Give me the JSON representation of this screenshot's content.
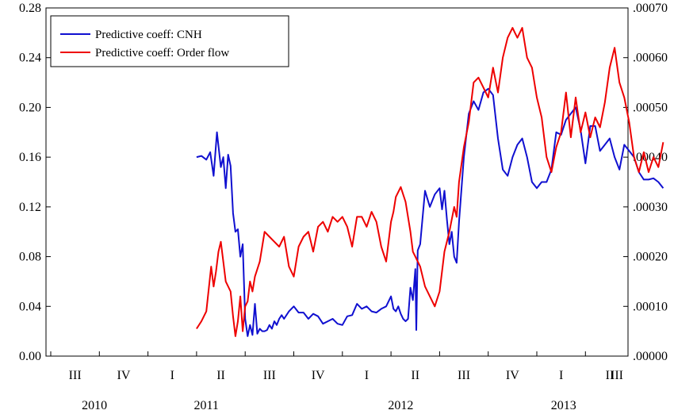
{
  "chart_data": {
    "type": "line",
    "title": "",
    "xlabel": "",
    "ylabel_left": "",
    "ylabel_right": "",
    "x_unit": "quarter index (0 = 2010 Q3)",
    "xlim": [
      0,
      12.7
    ],
    "ylim_left": [
      0.0,
      0.28
    ],
    "ylim_right": [
      0.0,
      0.0007
    ],
    "grid": false,
    "legend_position": "top-left",
    "left_ticks": [
      "0.00",
      "0.04",
      "0.08",
      "0.12",
      "0.16",
      "0.20",
      "0.24",
      "0.28"
    ],
    "right_ticks": [
      ".00000",
      ".00010",
      ".00020",
      ".00030",
      ".00040",
      ".00050",
      ".00060",
      ".00070"
    ],
    "quarter_labels": [
      "III",
      "IV",
      "I",
      "II",
      "III",
      "IV",
      "I",
      "II",
      "III",
      "IV",
      "I",
      "II",
      "III"
    ],
    "year_labels": [
      {
        "label": "2010",
        "x": 0.9
      },
      {
        "label": "2011",
        "x": 3.2
      },
      {
        "label": "2012",
        "x": 7.2
      },
      {
        "label": "2013",
        "x": 10.55
      }
    ],
    "series": [
      {
        "name": "Predictive coeff: CNH",
        "color": "#1010d0",
        "axis": "left",
        "x": [
          3.0,
          3.1,
          3.2,
          3.28,
          3.35,
          3.42,
          3.5,
          3.55,
          3.6,
          3.65,
          3.7,
          3.75,
          3.8,
          3.85,
          3.9,
          3.95,
          4.0,
          4.05,
          4.1,
          4.15,
          4.2,
          4.25,
          4.3,
          4.35,
          4.4,
          4.45,
          4.5,
          4.55,
          4.6,
          4.65,
          4.7,
          4.75,
          4.8,
          4.9,
          5.0,
          5.1,
          5.2,
          5.3,
          5.4,
          5.5,
          5.6,
          5.7,
          5.8,
          5.9,
          6.0,
          6.1,
          6.2,
          6.3,
          6.4,
          6.5,
          6.6,
          6.7,
          6.8,
          6.9,
          7.0,
          7.05,
          7.1,
          7.15,
          7.2,
          7.25,
          7.3,
          7.35,
          7.4,
          7.45,
          7.5,
          7.52,
          7.55,
          7.6,
          7.7,
          7.8,
          7.9,
          8.0,
          8.05,
          8.1,
          8.15,
          8.2,
          8.25,
          8.3,
          8.35,
          8.4,
          8.5,
          8.6,
          8.7,
          8.8,
          8.9,
          9.0,
          9.1,
          9.2,
          9.3,
          9.4,
          9.5,
          9.6,
          9.7,
          9.8,
          9.9,
          10.0,
          10.1,
          10.2,
          10.3,
          10.4,
          10.5,
          10.6,
          10.7,
          10.8,
          10.9,
          11.0,
          11.1,
          11.2,
          11.3,
          11.4,
          11.5,
          11.6,
          11.7,
          11.8,
          11.9,
          12.0,
          12.1,
          12.2,
          12.3,
          12.4,
          12.5,
          12.6
        ],
        "values": [
          0.16,
          0.161,
          0.158,
          0.164,
          0.145,
          0.18,
          0.152,
          0.16,
          0.135,
          0.162,
          0.153,
          0.115,
          0.1,
          0.102,
          0.08,
          0.09,
          0.03,
          0.016,
          0.025,
          0.017,
          0.042,
          0.018,
          0.022,
          0.02,
          0.02,
          0.021,
          0.025,
          0.022,
          0.028,
          0.025,
          0.03,
          0.033,
          0.03,
          0.036,
          0.04,
          0.035,
          0.035,
          0.03,
          0.034,
          0.032,
          0.026,
          0.028,
          0.03,
          0.026,
          0.025,
          0.032,
          0.033,
          0.042,
          0.038,
          0.04,
          0.036,
          0.035,
          0.038,
          0.04,
          0.048,
          0.038,
          0.036,
          0.04,
          0.034,
          0.03,
          0.028,
          0.03,
          0.055,
          0.045,
          0.07,
          0.021,
          0.085,
          0.09,
          0.133,
          0.12,
          0.13,
          0.135,
          0.118,
          0.133,
          0.11,
          0.09,
          0.1,
          0.08,
          0.075,
          0.108,
          0.16,
          0.195,
          0.205,
          0.198,
          0.212,
          0.215,
          0.21,
          0.175,
          0.15,
          0.145,
          0.16,
          0.17,
          0.175,
          0.16,
          0.14,
          0.135,
          0.14,
          0.14,
          0.15,
          0.18,
          0.178,
          0.19,
          0.195,
          0.2,
          0.182,
          0.155,
          0.185,
          0.185,
          0.165,
          0.17,
          0.175,
          0.16,
          0.15,
          0.17,
          0.165,
          0.16,
          0.148,
          0.142,
          0.142,
          0.143,
          0.14,
          0.135
        ]
      },
      {
        "name": "Predictive coeff: Order flow",
        "color": "#ee0000",
        "axis": "right",
        "x": [
          3.0,
          3.1,
          3.2,
          3.3,
          3.35,
          3.4,
          3.45,
          3.5,
          3.55,
          3.6,
          3.7,
          3.75,
          3.8,
          3.85,
          3.9,
          3.95,
          4.0,
          4.05,
          4.1,
          4.15,
          4.2,
          4.3,
          4.4,
          4.5,
          4.6,
          4.7,
          4.8,
          4.9,
          5.0,
          5.1,
          5.2,
          5.3,
          5.35,
          5.4,
          5.5,
          5.6,
          5.7,
          5.8,
          5.9,
          6.0,
          6.1,
          6.2,
          6.3,
          6.4,
          6.5,
          6.6,
          6.7,
          6.8,
          6.9,
          7.0,
          7.05,
          7.1,
          7.2,
          7.3,
          7.4,
          7.45,
          7.5,
          7.6,
          7.7,
          7.8,
          7.9,
          8.0,
          8.1,
          8.2,
          8.3,
          8.35,
          8.4,
          8.5,
          8.6,
          8.7,
          8.8,
          8.9,
          9.0,
          9.1,
          9.2,
          9.3,
          9.4,
          9.5,
          9.55,
          9.6,
          9.7,
          9.8,
          9.9,
          10.0,
          10.1,
          10.2,
          10.3,
          10.4,
          10.5,
          10.6,
          10.7,
          10.8,
          10.9,
          11.0,
          11.1,
          11.2,
          11.3,
          11.4,
          11.5,
          11.6,
          11.7,
          11.8,
          11.9,
          12.0,
          12.1,
          12.2,
          12.3,
          12.4,
          12.5,
          12.6
        ],
        "values": [
          5.5e-05,
          7e-05,
          9e-05,
          0.00018,
          0.00014,
          0.00017,
          0.00021,
          0.00023,
          0.00019,
          0.00015,
          0.00013,
          8e-05,
          4e-05,
          7e-05,
          0.00012,
          5e-05,
          0.0001,
          0.00011,
          0.00015,
          0.00013,
          0.00016,
          0.00019,
          0.00025,
          0.00024,
          0.00023,
          0.00022,
          0.00024,
          0.00018,
          0.00016,
          0.00022,
          0.00024,
          0.00025,
          0.00023,
          0.00021,
          0.00026,
          0.00027,
          0.00025,
          0.00028,
          0.00027,
          0.00028,
          0.00026,
          0.00022,
          0.00028,
          0.00028,
          0.00026,
          0.00029,
          0.00027,
          0.00022,
          0.00019,
          0.00027,
          0.00029,
          0.00032,
          0.00034,
          0.00031,
          0.00025,
          0.00021,
          0.0002,
          0.00018,
          0.00014,
          0.00012,
          0.0001,
          0.00013,
          0.00021,
          0.00025,
          0.0003,
          0.00028,
          0.00035,
          0.00042,
          0.00047,
          0.00055,
          0.00056,
          0.00054,
          0.00052,
          0.00058,
          0.00053,
          0.0006,
          0.00064,
          0.00066,
          0.00065,
          0.00064,
          0.00066,
          0.0006,
          0.00058,
          0.00052,
          0.00048,
          0.0004,
          0.00037,
          0.00042,
          0.00045,
          0.00053,
          0.00044,
          0.00052,
          0.00045,
          0.00049,
          0.00044,
          0.00048,
          0.00046,
          0.00051,
          0.00058,
          0.00062,
          0.00055,
          0.00052,
          0.00047,
          0.0004,
          0.00037,
          0.00041,
          0.00037,
          0.0004,
          0.00038,
          0.00043
        ]
      }
    ]
  }
}
